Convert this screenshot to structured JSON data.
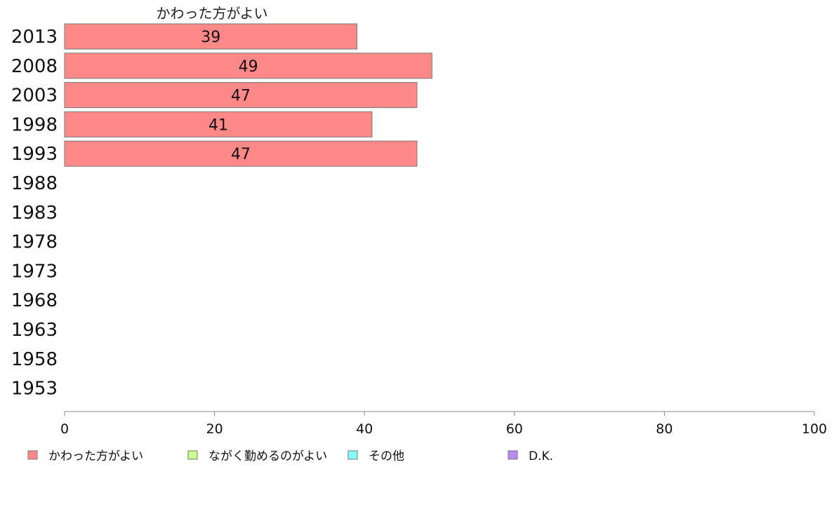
{
  "chart_data": {
    "type": "bar",
    "orientation": "horizontal",
    "categories": [
      "2013",
      "2008",
      "2003",
      "1998",
      "1993",
      "1988",
      "1983",
      "1978",
      "1973",
      "1968",
      "1963",
      "1958",
      "1953"
    ],
    "series": [
      {
        "name": "かわった方がよい",
        "color": "#ff8888",
        "values": [
          39,
          49,
          47,
          41,
          47,
          null,
          null,
          null,
          null,
          null,
          null,
          null,
          null
        ]
      }
    ],
    "series_title": "かわった方がよい",
    "xlim": [
      0,
      100
    ],
    "xticks": [
      0,
      20,
      40,
      60,
      80,
      100
    ],
    "legend": {
      "placement": "bottom",
      "items": [
        {
          "label": "かわった方がよい",
          "color": "#ff8888"
        },
        {
          "label": "ながく勤めるのがよい",
          "color": "#ccff88"
        },
        {
          "label": "その他",
          "color": "#88ffff"
        },
        {
          "label": "D.K.",
          "color": "#bb88ff"
        }
      ]
    },
    "grid": false
  }
}
